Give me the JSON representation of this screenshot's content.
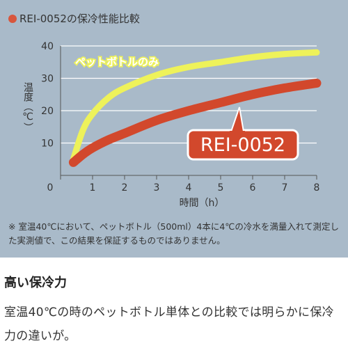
{
  "title": "REI-0052の保冷性能比較",
  "note": "※ 室温40℃において、ペットボトル（500ml）4本に4℃の冷水を満量入れて測定した実測値で、この結果を保証するものではありません。",
  "heading": "高い保冷力",
  "body_text": "室温40℃の時のペットボトル単体との比較では明らかに保冷力の違いが。",
  "colors": {
    "panel": "#a9bac9",
    "bottle_line": "#eef25a",
    "rei_line": "#d2482c",
    "rei_label_bg": "#d2482c",
    "gridline": "#ffffff"
  },
  "chart_data": {
    "type": "line",
    "ylabel": "温度（℃）",
    "xlabel": "時間（h）",
    "xlim": [
      0,
      8
    ],
    "ylim": [
      0,
      40
    ],
    "xticks": [
      0,
      1,
      2,
      3,
      4,
      5,
      6,
      7,
      8
    ],
    "yticks": [
      10,
      20,
      30,
      40
    ],
    "grid": true,
    "series": [
      {
        "name": "ペットボトルのみ",
        "x": [
          0.4,
          0.7,
          1,
          1.5,
          2,
          3,
          4,
          5,
          6,
          7,
          8
        ],
        "y": [
          5,
          14,
          19,
          24,
          27,
          31,
          33.5,
          35,
          36.5,
          37.5,
          38
        ]
      },
      {
        "name": "REI-0052",
        "x": [
          0.4,
          0.7,
          1,
          1.5,
          2,
          3,
          4,
          5,
          6,
          7,
          8
        ],
        "y": [
          4,
          6.5,
          8.5,
          11,
          13,
          17,
          20,
          22.5,
          25,
          27,
          28.5
        ]
      }
    ]
  }
}
